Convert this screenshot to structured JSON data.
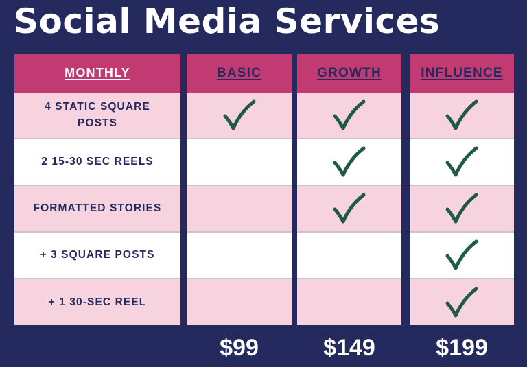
{
  "title": "Social Media Services",
  "table": {
    "headers": {
      "monthly": "MONTHLY",
      "basic": "BASIC",
      "growth": "GROWTH",
      "influence": "INFLUENCE"
    },
    "rows": [
      {
        "feature": "4 STATIC SQUARE POSTS",
        "basic": true,
        "growth": true,
        "influence": true
      },
      {
        "feature": "2 15-30 SEC REELS",
        "basic": false,
        "growth": true,
        "influence": true
      },
      {
        "feature": "FORMATTED STORIES",
        "basic": false,
        "growth": true,
        "influence": true
      },
      {
        "feature": "+ 3 SQUARE POSTS",
        "basic": false,
        "growth": false,
        "influence": true
      },
      {
        "feature": "+ 1 30-SEC REEL",
        "basic": false,
        "growth": false,
        "influence": true
      }
    ]
  },
  "prices": {
    "basic": "$99",
    "growth": "$149",
    "influence": "$199"
  },
  "colors": {
    "background": "#242a5e",
    "header": "#c23a72",
    "row_pink": "#f7d3df",
    "row_white": "#ffffff",
    "check": "#1f5a47"
  },
  "icons": {
    "included": "checkmark-icon"
  }
}
